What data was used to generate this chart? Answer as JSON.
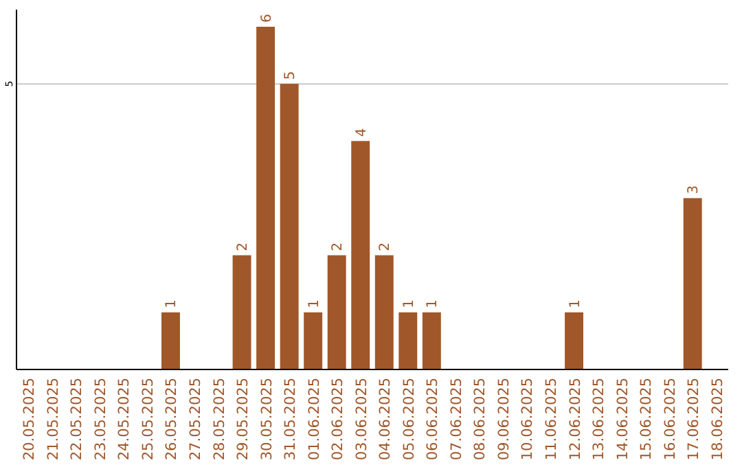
{
  "chart_data": {
    "type": "bar",
    "categories": [
      "20.05.2025",
      "21.05.2025",
      "22.05.2025",
      "23.05.2025",
      "24.05.2025",
      "25.05.2025",
      "26.05.2025",
      "27.05.2025",
      "28.05.2025",
      "29.05.2025",
      "30.05.2025",
      "31.05.2025",
      "01.06.2025",
      "02.06.2025",
      "03.06.2025",
      "04.06.2025",
      "05.06.2025",
      "06.06.2025",
      "07.06.2025",
      "08.06.2025",
      "09.06.2025",
      "10.06.2025",
      "11.06.2025",
      "12.06.2025",
      "13.06.2025",
      "14.06.2025",
      "15.06.2025",
      "16.06.2025",
      "17.06.2025",
      "18.06.2025"
    ],
    "values": [
      0,
      0,
      0,
      0,
      0,
      0,
      1,
      0,
      0,
      2,
      6,
      5,
      1,
      2,
      4,
      2,
      1,
      1,
      0,
      0,
      0,
      0,
      0,
      1,
      0,
      0,
      0,
      0,
      3,
      0
    ],
    "value_labels": [
      null,
      null,
      null,
      null,
      null,
      null,
      "1",
      null,
      null,
      "2",
      "6",
      "5",
      "1",
      "2",
      "4",
      "2",
      "1",
      "1",
      null,
      null,
      null,
      null,
      null,
      "1",
      null,
      null,
      null,
      null,
      "3",
      null
    ],
    "color": "#a0572a",
    "ylim": [
      0,
      6.3
    ],
    "yticks": [
      5
    ],
    "grid": "y"
  }
}
